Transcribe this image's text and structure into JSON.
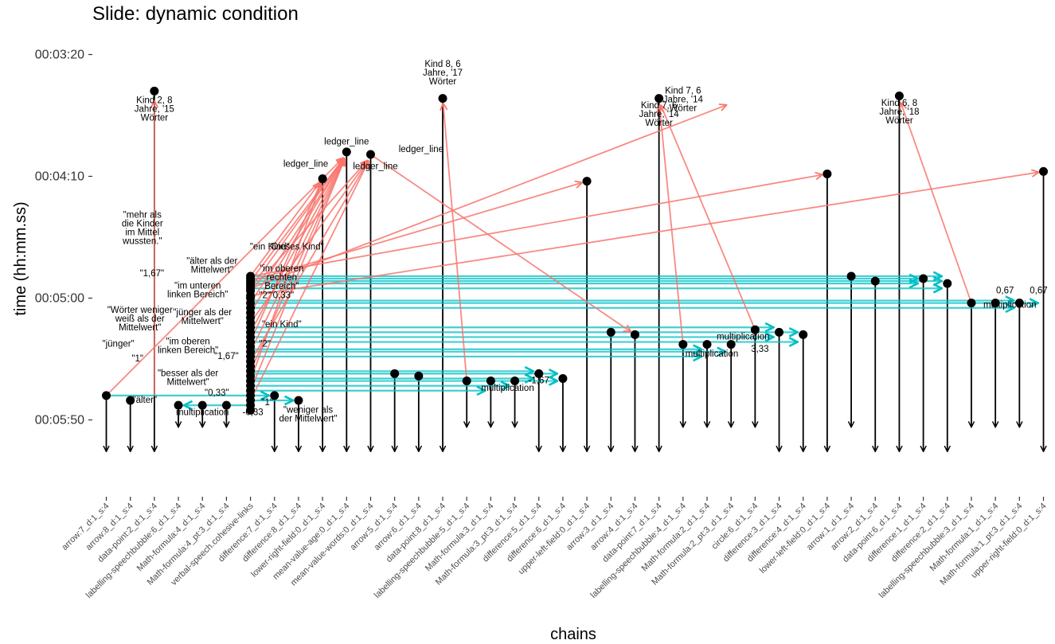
{
  "chart_data": {
    "type": "scatter",
    "title": "Slide: dynamic condition",
    "xlabel": "chains",
    "ylabel": "time (hh:mm.ss)",
    "y_axis": "reversed time, seconds from 00:03:00",
    "ylim_seconds": [
      12,
      190
    ],
    "yticks": [
      {
        "label": "00:03:20",
        "seconds": 20
      },
      {
        "label": "00:04:10",
        "seconds": 70
      },
      {
        "label": "00:05:00",
        "seconds": 120
      },
      {
        "label": "00:05:50",
        "seconds": 170
      }
    ],
    "chain_end_seconds": 183,
    "colors": {
      "point": "#000000",
      "cross_link": "#f8766d",
      "forward_link": "#00bfc4",
      "chain": "#000000",
      "axis": "#333333"
    },
    "categories": [
      "arrow:7_d:1_s:4",
      "arrow:8_d:1_s:4",
      "data-point:2_d:1_s:4",
      "labelling-speechbubble:6_d:1_s:4",
      "Math-formula:4_d:1_s:4",
      "Math-formula:4_pt:3_d:1_s:4",
      "verbal-speech.cohesive-links",
      "difference:7_d:1_s:4",
      "difference:8_d:1_s:4",
      "lower-right-field:0_d:1_s:4",
      "mean-value-age:0_d:1_s:4",
      "mean-value-words:0_d:1_s:4",
      "arrow:5_d:1_s:4",
      "arrow:6_d:1_s:4",
      "data-point:8_d:1_s:4",
      "labelling-speechbubble:5_d:1_s:4",
      "Math-formula:3_d:1_s:4",
      "Math-formula:3_pt:3_d:1_s:4",
      "difference:5_d:1_s:4",
      "difference:6_d:1_s:4",
      "upper-left-field:0_d:1_s:4",
      "arrow:3_d:1_s:4",
      "arrow:4_d:1_s:4",
      "data-point:7_d:1_s:4",
      "labelling-speechbubble:4_d:1_s:4",
      "Math-formula:2_d:1_s:4",
      "Math-formula:2_pt:3_d:1_s:4",
      "circle:6_d:1_s:4",
      "difference:3_d:1_s:4",
      "difference:4_d:1_s:4",
      "lower-left-field:0_d:1_s:4",
      "arrow:1_d:1_s:4",
      "arrow:2_d:1_s:4",
      "data-point:6_d:1_s:4",
      "difference:1_d:1_s:4",
      "difference:2_d:1_s:4",
      "labelling-speechbubble:3_d:1_s:4",
      "Math-formula:1_d:1_s:4",
      "Math-formula:1_pt:3_d:1_s:4",
      "upper-right-field:0_d:1_s:4"
    ],
    "elements": [
      {
        "x": 1,
        "start": 160,
        "end": 183
      },
      {
        "x": 2,
        "start": 162,
        "end": 183
      },
      {
        "x": 3,
        "start": 35,
        "end": 183
      },
      {
        "x": 4,
        "start": 164,
        "end": 173
      },
      {
        "x": 5,
        "start": 164,
        "end": 173
      },
      {
        "x": 6,
        "start": 164,
        "end": 173
      },
      {
        "x": 8,
        "start": 160,
        "end": 183
      },
      {
        "x": 9,
        "start": 162,
        "end": 183
      },
      {
        "x": 10,
        "start": 71,
        "end": 183
      },
      {
        "x": 11,
        "start": 60,
        "end": 183
      },
      {
        "x": 12,
        "start": 61,
        "end": 183
      },
      {
        "x": 13,
        "start": 151,
        "end": 183
      },
      {
        "x": 14,
        "start": 152,
        "end": 183
      },
      {
        "x": 15,
        "start": 38,
        "end": 183
      },
      {
        "x": 16,
        "start": 154,
        "end": 173
      },
      {
        "x": 17,
        "start": 154,
        "end": 173
      },
      {
        "x": 18,
        "start": 154,
        "end": 173
      },
      {
        "x": 19,
        "start": 151,
        "end": 183
      },
      {
        "x": 20,
        "start": 153,
        "end": 183
      },
      {
        "x": 21,
        "start": 72,
        "end": 183
      },
      {
        "x": 22,
        "start": 134,
        "end": 183
      },
      {
        "x": 23,
        "start": 135,
        "end": 183
      },
      {
        "x": 24,
        "start": 38,
        "end": 183
      },
      {
        "x": 25,
        "start": 139,
        "end": 173
      },
      {
        "x": 26,
        "start": 139,
        "end": 173
      },
      {
        "x": 27,
        "start": 139,
        "end": 173
      },
      {
        "x": 28,
        "start": 133,
        "end": 173
      },
      {
        "x": 29,
        "start": 134,
        "end": 183
      },
      {
        "x": 30,
        "start": 135,
        "end": 183
      },
      {
        "x": 31,
        "start": 69,
        "end": 183
      },
      {
        "x": 32,
        "start": 111,
        "end": 173
      },
      {
        "x": 33,
        "start": 113,
        "end": 183
      },
      {
        "x": 34,
        "start": 37,
        "end": 183
      },
      {
        "x": 35,
        "start": 112,
        "end": 183
      },
      {
        "x": 36,
        "start": 114,
        "end": 183
      },
      {
        "x": 37,
        "start": 122,
        "end": 173
      },
      {
        "x": 38,
        "start": 122,
        "end": 173
      },
      {
        "x": 39,
        "start": 122,
        "end": 173
      },
      {
        "x": 40,
        "start": 68,
        "end": 183
      }
    ],
    "speech_points_seconds": [
      111,
      112,
      113,
      114,
      115,
      116,
      117,
      119,
      120,
      122,
      124,
      126,
      128,
      130,
      132,
      134,
      136,
      138,
      140,
      142,
      144,
      146,
      148,
      150,
      152,
      154,
      156,
      158,
      160,
      162,
      164,
      166
    ],
    "cross_links": [
      {
        "x1": 1,
        "y1": 160,
        "x2": 11,
        "y2": 61
      },
      {
        "x1": 3,
        "y1": 160,
        "x2": 3,
        "y2": 37
      },
      {
        "x1": 7,
        "y1": 111,
        "x2": 10,
        "y2": 71
      },
      {
        "x1": 7,
        "y1": 113,
        "x2": 11,
        "y2": 61
      },
      {
        "x1": 7,
        "y1": 116,
        "x2": 11,
        "y2": 61
      },
      {
        "x1": 7,
        "y1": 117,
        "x2": 12,
        "y2": 62
      },
      {
        "x1": 7,
        "y1": 122,
        "x2": 11,
        "y2": 61
      },
      {
        "x1": 7,
        "y1": 126,
        "x2": 11,
        "y2": 61
      },
      {
        "x1": 7,
        "y1": 130,
        "x2": 12,
        "y2": 62
      },
      {
        "x1": 7,
        "y1": 134,
        "x2": 11,
        "y2": 61
      },
      {
        "x1": 7,
        "y1": 138,
        "x2": 10,
        "y2": 71
      },
      {
        "x1": 7,
        "y1": 142,
        "x2": 11,
        "y2": 61
      },
      {
        "x1": 7,
        "y1": 146,
        "x2": 12,
        "y2": 62
      },
      {
        "x1": 7,
        "y1": 150,
        "x2": 11,
        "y2": 61
      },
      {
        "x1": 7,
        "y1": 154,
        "x2": 10,
        "y2": 71
      },
      {
        "x1": 7,
        "y1": 158,
        "x2": 11,
        "y2": 61
      },
      {
        "x1": 7,
        "y1": 162,
        "x2": 12,
        "y2": 62
      },
      {
        "x1": 7,
        "y1": 113,
        "x2": 21,
        "y2": 72
      },
      {
        "x1": 7,
        "y1": 116,
        "x2": 27,
        "y2": 40
      },
      {
        "x1": 7,
        "y1": 111,
        "x2": 31,
        "y2": 69
      },
      {
        "x1": 7,
        "y1": 119,
        "x2": 40,
        "y2": 68
      },
      {
        "x1": 12,
        "y1": 61,
        "x2": 23,
        "y2": 135
      },
      {
        "x1": 16,
        "y1": 154,
        "x2": 15,
        "y2": 38
      },
      {
        "x1": 25,
        "y1": 139,
        "x2": 24,
        "y2": 39
      },
      {
        "x1": 28,
        "y1": 133,
        "x2": 24,
        "y2": 39
      },
      {
        "x1": 37,
        "y1": 122,
        "x2": 34,
        "y2": 38
      }
    ],
    "forward_links": [
      {
        "x1": 1,
        "y1": 160,
        "x2": 8,
        "y2": 160
      },
      {
        "x1": 7,
        "y1": 164,
        "x2": 4,
        "y2": 164
      },
      {
        "x1": 7,
        "y1": 162,
        "x2": 9,
        "y2": 162
      },
      {
        "x1": 7,
        "y1": 111,
        "x2": 36,
        "y2": 111
      },
      {
        "x1": 7,
        "y1": 112,
        "x2": 35,
        "y2": 112
      },
      {
        "x1": 7,
        "y1": 113,
        "x2": 36,
        "y2": 113
      },
      {
        "x1": 7,
        "y1": 114,
        "x2": 35,
        "y2": 114
      },
      {
        "x1": 7,
        "y1": 116,
        "x2": 36,
        "y2": 116
      },
      {
        "x1": 7,
        "y1": 121,
        "x2": 39,
        "y2": 121
      },
      {
        "x1": 7,
        "y1": 122,
        "x2": 40,
        "y2": 122
      },
      {
        "x1": 7,
        "y1": 124,
        "x2": 39,
        "y2": 124
      },
      {
        "x1": 7,
        "y1": 132,
        "x2": 29,
        "y2": 132
      },
      {
        "x1": 7,
        "y1": 134,
        "x2": 30,
        "y2": 134
      },
      {
        "x1": 7,
        "y1": 136,
        "x2": 29,
        "y2": 136
      },
      {
        "x1": 7,
        "y1": 138,
        "x2": 30,
        "y2": 138
      },
      {
        "x1": 7,
        "y1": 141,
        "x2": 26,
        "y2": 141
      },
      {
        "x1": 7,
        "y1": 142,
        "x2": 27,
        "y2": 142
      },
      {
        "x1": 7,
        "y1": 144,
        "x2": 26,
        "y2": 144
      },
      {
        "x1": 7,
        "y1": 150,
        "x2": 19,
        "y2": 150
      },
      {
        "x1": 7,
        "y1": 151,
        "x2": 20,
        "y2": 151
      },
      {
        "x1": 7,
        "y1": 153,
        "x2": 19,
        "y2": 153
      },
      {
        "x1": 7,
        "y1": 154,
        "x2": 20,
        "y2": 154
      },
      {
        "x1": 7,
        "y1": 156,
        "x2": 18,
        "y2": 156
      },
      {
        "x1": 7,
        "y1": 158,
        "x2": 17,
        "y2": 158
      }
    ],
    "annotations": [
      {
        "x": 3,
        "y": 40,
        "lines": [
          "Kind 2, 8",
          "Jahre, '15",
          "Wörter"
        ],
        "anchor": "middle"
      },
      {
        "x": 15,
        "y": 25,
        "lines": [
          "Kind 8, 6",
          "Jahre, '17",
          "Wörter"
        ],
        "anchor": "middle"
      },
      {
        "x": 24,
        "y": 42,
        "lines": [
          "Kind 7, 6",
          "Jahre, '14",
          "Wörter"
        ],
        "anchor": "middle"
      },
      {
        "x": 25,
        "y": 36,
        "lines": [
          "Kind 7, 6",
          "Jahre, '14",
          "Wörter"
        ],
        "anchor": "middle"
      },
      {
        "x": 34,
        "y": 41,
        "lines": [
          "Kind 6, 8",
          "Jahre, '18",
          "Wörter"
        ],
        "anchor": "middle"
      },
      {
        "x": 11,
        "y": 57,
        "lines": [
          "ledger_line"
        ],
        "anchor": "middle"
      },
      {
        "x": 9.3,
        "y": 66,
        "lines": [
          "ledger_line"
        ],
        "anchor": "middle"
      },
      {
        "x": 12.2,
        "y": 67,
        "lines": [
          "ledger_line"
        ],
        "anchor": "middle"
      },
      {
        "x": 14.1,
        "y": 60,
        "lines": [
          "ledger_line"
        ],
        "anchor": "middle"
      },
      {
        "x": 2.5,
        "y": 87,
        "lines": [
          "\"mehr als",
          "die Kinder",
          "im Mittel",
          "wussten.\""
        ],
        "anchor": "middle"
      },
      {
        "x": 7.8,
        "y": 100,
        "lines": [
          "\"ein Kind\""
        ],
        "anchor": "middle"
      },
      {
        "x": 8.9,
        "y": 100,
        "lines": [
          "\"Dieses Kind\""
        ],
        "anchor": "middle"
      },
      {
        "x": 5.4,
        "y": 106,
        "lines": [
          "\"älter als der",
          "Mittelwert\""
        ],
        "anchor": "middle"
      },
      {
        "x": 8.3,
        "y": 109,
        "lines": [
          "\"im oberen",
          "rechten",
          "Bereich\""
        ],
        "anchor": "middle"
      },
      {
        "x": 2.9,
        "y": 111,
        "lines": [
          "\"1,67\""
        ],
        "anchor": "middle"
      },
      {
        "x": 4.8,
        "y": 116,
        "lines": [
          "\"im unteren",
          "linken Bereich\""
        ],
        "anchor": "middle"
      },
      {
        "x": 7.6,
        "y": 120,
        "lines": [
          "\"2\""
        ],
        "anchor": "middle"
      },
      {
        "x": 8.3,
        "y": 120,
        "lines": [
          "\"0,33\""
        ],
        "anchor": "middle"
      },
      {
        "x": 2.4,
        "y": 126,
        "lines": [
          "\"Wörter weniger",
          "weiß als der",
          "Mittelwert\""
        ],
        "anchor": "middle"
      },
      {
        "x": 5.0,
        "y": 127,
        "lines": [
          "\"jünger als der",
          "Mittelwert\""
        ],
        "anchor": "middle"
      },
      {
        "x": 8.3,
        "y": 132,
        "lines": [
          "\"ein Kind\""
        ],
        "anchor": "middle"
      },
      {
        "x": 4.4,
        "y": 139,
        "lines": [
          "\"im oberen",
          "linken Bereich\""
        ],
        "anchor": "middle"
      },
      {
        "x": 1.5,
        "y": 140,
        "lines": [
          "\"jünger\""
        ],
        "anchor": "middle"
      },
      {
        "x": 7.6,
        "y": 140,
        "lines": [
          "\"2\""
        ],
        "anchor": "middle"
      },
      {
        "x": 6.0,
        "y": 145,
        "lines": [
          "\"1,67\""
        ],
        "anchor": "middle"
      },
      {
        "x": 2.3,
        "y": 146,
        "lines": [
          "\"1\""
        ],
        "anchor": "middle"
      },
      {
        "x": 4.4,
        "y": 152,
        "lines": [
          "\"besser als der",
          "Mittelwert\""
        ],
        "anchor": "middle"
      },
      {
        "x": 5.6,
        "y": 160,
        "lines": [
          "\"0,33\""
        ],
        "anchor": "middle"
      },
      {
        "x": 2.6,
        "y": 163,
        "lines": [
          "\"älter\""
        ],
        "anchor": "middle"
      },
      {
        "x": 7.7,
        "y": 164,
        "lines": [
          "\"1\""
        ],
        "anchor": "middle"
      },
      {
        "x": 9.4,
        "y": 167,
        "lines": [
          "\"weniger als",
          "der Mittelwert\""
        ],
        "anchor": "middle"
      },
      {
        "x": 5.0,
        "y": 168,
        "lines": [
          "multiplication"
        ],
        "anchor": "middle"
      },
      {
        "x": 7.1,
        "y": 168,
        "lines": [
          "-0,33"
        ],
        "anchor": "middle"
      },
      {
        "x": 17.7,
        "y": 158,
        "lines": [
          "multiplication"
        ],
        "anchor": "middle"
      },
      {
        "x": 19.0,
        "y": 155,
        "lines": [
          "-1,67"
        ],
        "anchor": "middle"
      },
      {
        "x": 27.5,
        "y": 137,
        "lines": [
          "multiplication"
        ],
        "anchor": "middle"
      },
      {
        "x": 26.2,
        "y": 144,
        "lines": [
          "multiplication"
        ],
        "anchor": "middle"
      },
      {
        "x": 28.2,
        "y": 142,
        "lines": [
          "3,33"
        ],
        "anchor": "middle"
      },
      {
        "x": 38.6,
        "y": 124,
        "lines": [
          "multiplication"
        ],
        "anchor": "middle"
      },
      {
        "x": 38.4,
        "y": 118,
        "lines": [
          "0,67"
        ],
        "anchor": "middle"
      },
      {
        "x": 39.8,
        "y": 118,
        "lines": [
          "0,67"
        ],
        "anchor": "middle"
      }
    ]
  }
}
